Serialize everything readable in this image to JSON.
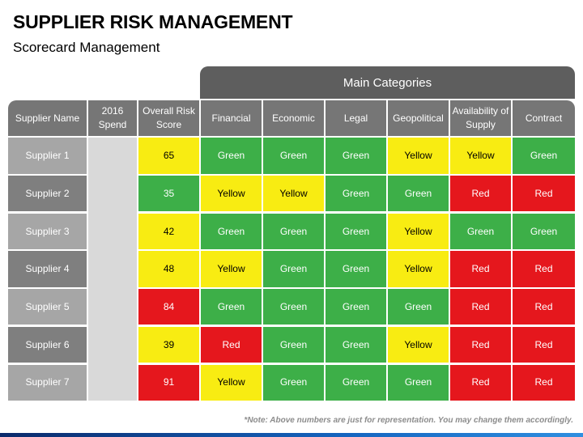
{
  "title": "SUPPLIER RISK MANAGEMENT",
  "subtitle": "Scorecard Management",
  "main_categories": "Main Categories",
  "headers": [
    "Supplier Name",
    "2016 Spend",
    "Overall Risk Score",
    "Financial",
    "Economic",
    "Legal",
    "Geopolitical",
    "Availability of Supply",
    "Contract"
  ],
  "rows": [
    {
      "supplier": "Supplier 1",
      "score": "65",
      "score_color": "yellow",
      "ratings": [
        "Green",
        "Green",
        "Green",
        "Yellow",
        "Yellow",
        "Green"
      ]
    },
    {
      "supplier": "Supplier 2",
      "score": "35",
      "score_color": "green",
      "ratings": [
        "Yellow",
        "Yellow",
        "Green",
        "Green",
        "Red",
        "Red"
      ]
    },
    {
      "supplier": "Supplier 3",
      "score": "42",
      "score_color": "yellow",
      "ratings": [
        "Green",
        "Green",
        "Green",
        "Yellow",
        "Green",
        "Green"
      ]
    },
    {
      "supplier": "Supplier 4",
      "score": "48",
      "score_color": "yellow",
      "ratings": [
        "Yellow",
        "Green",
        "Green",
        "Yellow",
        "Red",
        "Red"
      ]
    },
    {
      "supplier": "Supplier 5",
      "score": "84",
      "score_color": "red",
      "ratings": [
        "Green",
        "Green",
        "Green",
        "Green",
        "Red",
        "Red"
      ]
    },
    {
      "supplier": "Supplier 6",
      "score": "39",
      "score_color": "yellow",
      "ratings": [
        "Red",
        "Green",
        "Green",
        "Yellow",
        "Red",
        "Red"
      ]
    },
    {
      "supplier": "Supplier 7",
      "score": "91",
      "score_color": "red",
      "ratings": [
        "Yellow",
        "Green",
        "Green",
        "Green",
        "Red",
        "Red"
      ]
    }
  ],
  "note": "*Note: Above numbers are just for representation. You may change them accordingly.",
  "colors": {
    "green": "#3daf48",
    "yellow": "#f8ec12",
    "red": "#e5171d",
    "header": "#767676",
    "main_header": "#5e5e5e"
  }
}
